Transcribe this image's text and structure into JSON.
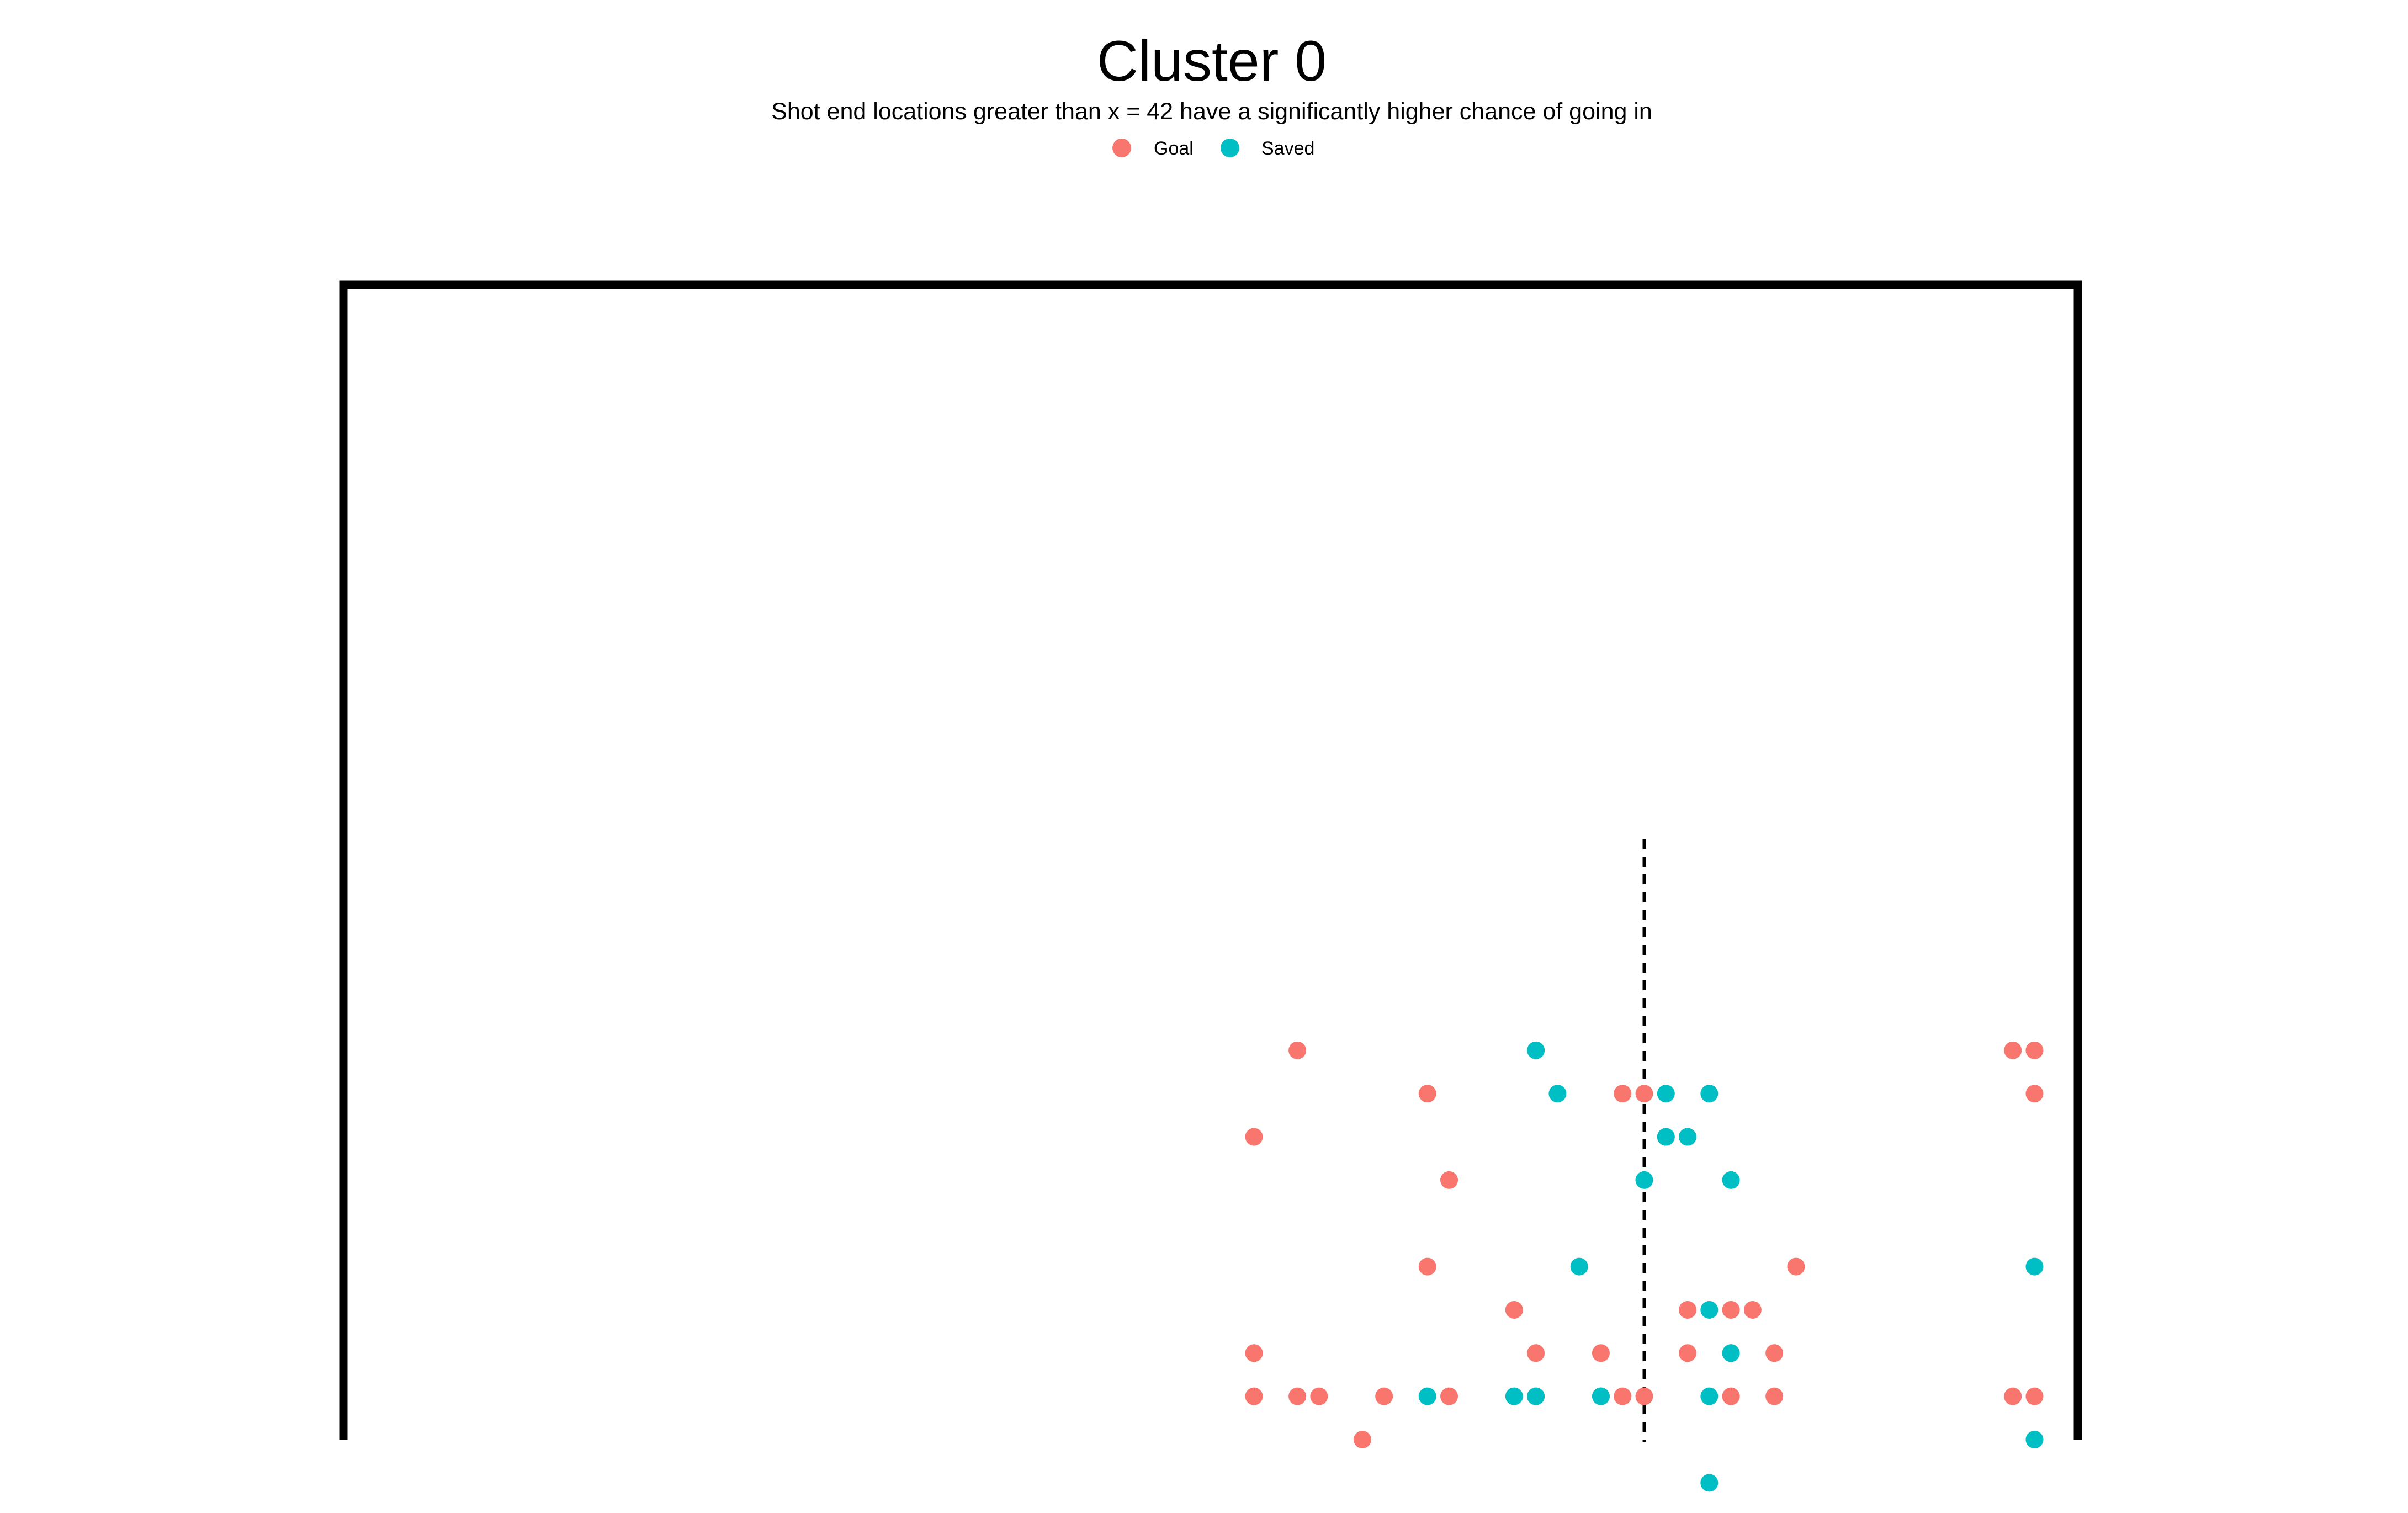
{
  "chart_data": {
    "type": "scatter",
    "title": "Cluster 0",
    "subtitle": "Shot end locations greater than x = 42 have a significantly higher chance of going in",
    "xlabel": "",
    "ylabel": "",
    "xlim": [
      36,
      44
    ],
    "ylim": [
      0,
      2.67
    ],
    "grid": false,
    "legend_position": "top",
    "reference_line": {
      "x": 42.0,
      "style": "dashed"
    },
    "goal_frame": {
      "left_post_x": 36,
      "right_post_x": 44,
      "crossbar_y": 2.67
    },
    "series": [
      {
        "name": "Goal",
        "color": "#F8766D",
        "points": [
          [
            40.4,
            0.9
          ],
          [
            43.7,
            0.9
          ],
          [
            43.8,
            0.9
          ],
          [
            41.0,
            0.8
          ],
          [
            41.9,
            0.8
          ],
          [
            42.0,
            0.8
          ],
          [
            43.8,
            0.8
          ],
          [
            40.2,
            0.7
          ],
          [
            42.1,
            0.7
          ],
          [
            42.2,
            0.7
          ],
          [
            41.1,
            0.6
          ],
          [
            41.0,
            0.4
          ],
          [
            42.7,
            0.4
          ],
          [
            41.4,
            0.3
          ],
          [
            42.2,
            0.3
          ],
          [
            42.4,
            0.3
          ],
          [
            42.5,
            0.3
          ],
          [
            40.2,
            0.2
          ],
          [
            41.5,
            0.2
          ],
          [
            41.8,
            0.2
          ],
          [
            42.2,
            0.2
          ],
          [
            42.4,
            0.2
          ],
          [
            42.6,
            0.2
          ],
          [
            40.2,
            0.1
          ],
          [
            40.4,
            0.1
          ],
          [
            40.5,
            0.1
          ],
          [
            40.8,
            0.1
          ],
          [
            41.5,
            0.1
          ],
          [
            41.9,
            0.1
          ],
          [
            41.1,
            0.1
          ],
          [
            41.8,
            0.1
          ],
          [
            42.0,
            0.1
          ],
          [
            42.4,
            0.1
          ],
          [
            42.6,
            0.1
          ],
          [
            43.7,
            0.1
          ],
          [
            43.8,
            0.1
          ],
          [
            40.7,
            0.0
          ]
        ]
      },
      {
        "name": "Saved",
        "color": "#00BFC4",
        "points": [
          [
            41.5,
            0.9
          ],
          [
            41.6,
            0.8
          ],
          [
            42.1,
            0.8
          ],
          [
            42.3,
            0.8
          ],
          [
            42.1,
            0.7
          ],
          [
            42.2,
            0.7
          ],
          [
            42.0,
            0.6
          ],
          [
            42.4,
            0.6
          ],
          [
            41.7,
            0.4
          ],
          [
            43.8,
            0.4
          ],
          [
            42.3,
            0.3
          ],
          [
            42.4,
            0.2
          ],
          [
            41.0,
            0.1
          ],
          [
            41.4,
            0.1
          ],
          [
            41.5,
            0.1
          ],
          [
            41.8,
            0.1
          ],
          [
            42.3,
            0.1
          ],
          [
            43.8,
            0.0
          ],
          [
            42.3,
            -0.1
          ]
        ]
      }
    ]
  }
}
